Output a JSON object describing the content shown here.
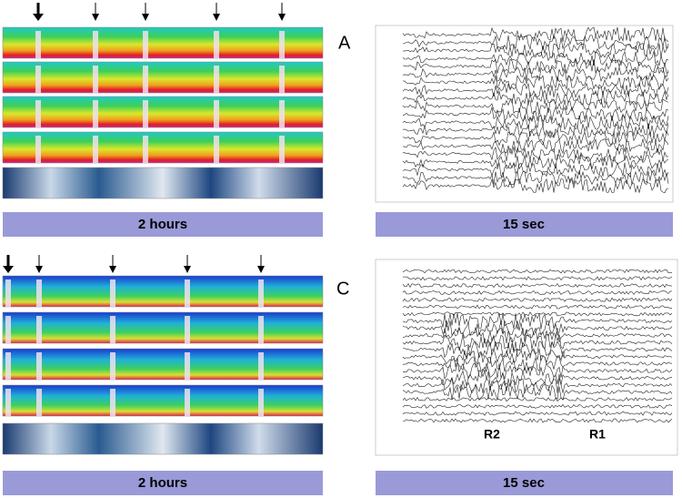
{
  "panels": [
    {
      "label": "A",
      "spectrogram_caption": "2 hours",
      "eeg_caption": "15 sec"
    },
    {
      "label": "C",
      "spectrogram_caption": "2 hours",
      "eeg_caption": "15 sec",
      "eeg_annotations": [
        "R2",
        "R1"
      ]
    }
  ]
}
